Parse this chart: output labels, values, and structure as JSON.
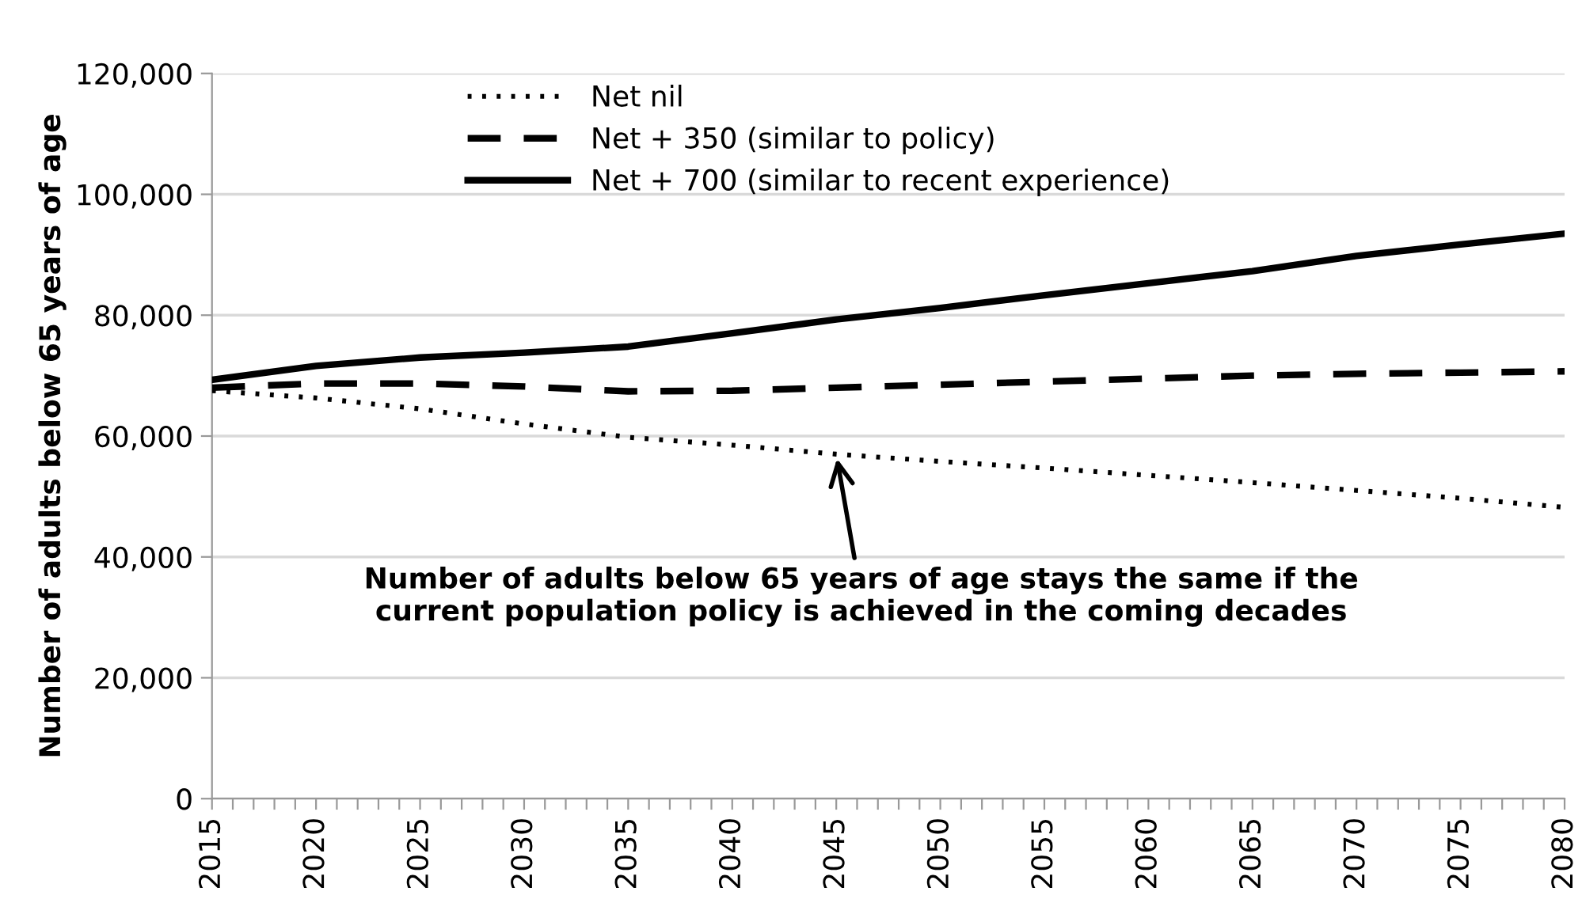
{
  "chart_data": {
    "type": "line",
    "ylabel": "Number of adults below 65 years of age",
    "x": [
      2015,
      2020,
      2025,
      2030,
      2035,
      2040,
      2045,
      2050,
      2055,
      2060,
      2065,
      2070,
      2075,
      2080
    ],
    "series": [
      {
        "name": "Net nil",
        "color": "#000000",
        "line_style": "dotted",
        "values": [
          67500,
          66300,
          64500,
          62000,
          59800,
          58500,
          57000,
          55800,
          54700,
          53500,
          52300,
          51000,
          49700,
          48200
        ]
      },
      {
        "name": "Net + 350 (similar to policy)",
        "color": "#000000",
        "line_style": "dashed",
        "values": [
          68000,
          68700,
          68700,
          68200,
          67400,
          67500,
          68000,
          68500,
          69000,
          69500,
          70000,
          70300,
          70500,
          70700
        ]
      },
      {
        "name": "Net + 700 (similar to recent experience)",
        "color": "#000000",
        "line_style": "solid",
        "values": [
          69300,
          71600,
          73000,
          73800,
          74800,
          77000,
          79300,
          81200,
          83300,
          85300,
          87300,
          89800,
          91700,
          93500
        ]
      }
    ],
    "xlim": [
      2015,
      2080
    ],
    "xticks": [
      2015,
      {
        "value": 2016,
        "label": null
      },
      {
        "value": 2017,
        "label": null
      },
      {
        "value": 2018,
        "label": null
      },
      {
        "value": 2019,
        "label": null
      },
      2020,
      {
        "value": 2021,
        "label": null
      },
      {
        "value": 2022,
        "label": null
      },
      {
        "value": 2023,
        "label": null
      },
      {
        "value": 2024,
        "label": null
      },
      2025,
      {
        "value": 2026,
        "label": null
      },
      {
        "value": 2027,
        "label": null
      },
      {
        "value": 2028,
        "label": null
      },
      {
        "value": 2029,
        "label": null
      },
      2030,
      {
        "value": 2031,
        "label": null
      },
      {
        "value": 2032,
        "label": null
      },
      {
        "value": 2033,
        "label": null
      },
      {
        "value": 2034,
        "label": null
      },
      2035,
      {
        "value": 2036,
        "label": null
      },
      {
        "value": 2037,
        "label": null
      },
      {
        "value": 2038,
        "label": null
      },
      {
        "value": 2039,
        "label": null
      },
      2040,
      {
        "value": 2041,
        "label": null
      },
      {
        "value": 2042,
        "label": null
      },
      {
        "value": 2043,
        "label": null
      },
      {
        "value": 2044,
        "label": null
      },
      2045,
      {
        "value": 2046,
        "label": null
      },
      {
        "value": 2047,
        "label": null
      },
      {
        "value": 2048,
        "label": null
      },
      {
        "value": 2049,
        "label": null
      },
      2050,
      {
        "value": 2051,
        "label": null
      },
      {
        "value": 2052,
        "label": null
      },
      {
        "value": 2053,
        "label": null
      },
      {
        "value": 2054,
        "label": null
      },
      2055,
      {
        "value": 2056,
        "label": null
      },
      {
        "value": 2057,
        "label": null
      },
      {
        "value": 2058,
        "label": null
      },
      {
        "value": 2059,
        "label": null
      },
      2060,
      {
        "value": 2061,
        "label": null
      },
      {
        "value": 2062,
        "label": null
      },
      {
        "value": 2063,
        "label": null
      },
      {
        "value": 2064,
        "label": null
      },
      2065,
      {
        "value": 2066,
        "label": null
      },
      {
        "value": 2067,
        "label": null
      },
      {
        "value": 2068,
        "label": null
      },
      {
        "value": 2069,
        "label": null
      },
      2070,
      {
        "value": 2071,
        "label": null
      },
      {
        "value": 2072,
        "label": null
      },
      {
        "value": 2073,
        "label": null
      },
      {
        "value": 2074,
        "label": null
      },
      2075,
      {
        "value": 2076,
        "label": null
      },
      {
        "value": 2077,
        "label": null
      },
      {
        "value": 2078,
        "label": null
      },
      {
        "value": 2079,
        "label": null
      },
      2080
    ],
    "ylim": [
      0,
      120000
    ],
    "yticks": [
      0,
      {
        "value": 20000,
        "label": "20,000"
      },
      {
        "value": 40000,
        "label": "40,000"
      },
      {
        "value": 60000,
        "label": "60,000"
      },
      {
        "value": 80000,
        "label": "80,000"
      },
      {
        "value": 100000,
        "label": "100,000"
      },
      {
        "value": 120000,
        "label": "120,000"
      }
    ],
    "grid": "y",
    "legend": "top left",
    "marker": "none",
    "annotations": [
      {
        "text": "Number of adults below 65 years of age stays the same if the\ncurrent population policy is achieved in the coming decades",
        "x": 2045,
        "y": 57000
      }
    ]
  }
}
